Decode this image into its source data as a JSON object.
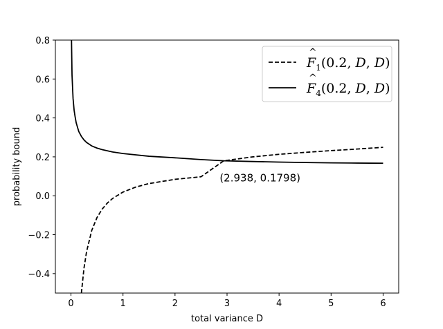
{
  "chart_data": {
    "type": "line",
    "xlabel": "total variance D",
    "ylabel": "probability bound",
    "xlim": [
      -0.3,
      6.3
    ],
    "ylim": [
      -0.5,
      0.8
    ],
    "xticks": [
      0,
      1,
      2,
      3,
      4,
      5,
      6
    ],
    "yticks": [
      -0.4,
      -0.2,
      0.0,
      0.2,
      0.4,
      0.6,
      0.8
    ],
    "ytick_labels": [
      "−0.4",
      "−0.2",
      "0.0",
      "0.2",
      "0.4",
      "0.6",
      "0.8"
    ],
    "legend_position": "upper right",
    "grid": false,
    "series": [
      {
        "name": "F̂₁(0.2, D, D)",
        "style": "dashed",
        "color": "#000000",
        "x": [
          0.2,
          0.25,
          0.3,
          0.4,
          0.5,
          0.6,
          0.7,
          0.8,
          1.0,
          1.25,
          1.5,
          2.0,
          2.5,
          2.938,
          3.5,
          4.0,
          4.5,
          5.0,
          5.5,
          6.0
        ],
        "y": [
          -0.5,
          -0.3725,
          -0.2867,
          -0.1775,
          -0.112,
          -0.0683,
          -0.0371,
          -0.0138,
          0.019,
          0.0452,
          0.0627,
          0.0845,
          0.0976,
          0.1798,
          0.2,
          0.213,
          0.223,
          0.232,
          0.24,
          0.249
        ]
      },
      {
        "name": "F̂₄(0.2, D, D)",
        "style": "solid",
        "color": "#000000",
        "x": [
          0.0,
          0.01,
          0.02,
          0.04,
          0.06,
          0.08,
          0.1,
          0.15,
          0.2,
          0.25,
          0.3,
          0.4,
          0.5,
          0.6,
          0.8,
          1.0,
          1.5,
          2.0,
          2.5,
          2.938,
          3.5,
          4.0,
          4.5,
          5.0,
          5.5,
          6.0
        ],
        "y": [
          0.8,
          0.8,
          0.62,
          0.5,
          0.44,
          0.405,
          0.375,
          0.33,
          0.305,
          0.287,
          0.274,
          0.256,
          0.245,
          0.237,
          0.225,
          0.217,
          0.203,
          0.195,
          0.186,
          0.1798,
          0.176,
          0.173,
          0.171,
          0.169,
          0.168,
          0.167
        ]
      }
    ],
    "annotations": [
      {
        "text": "(2.938, 0.1798)",
        "x": 2.938,
        "y": 0.1798
      }
    ]
  },
  "legend": {
    "entries": [
      {
        "base": "F",
        "sub": "1",
        "args": "(0.2, ",
        "var1": "D",
        "comma": ", ",
        "var2": "D",
        "close": ")"
      },
      {
        "base": "F",
        "sub": "4",
        "args": "(0.2, ",
        "var1": "D",
        "comma": ", ",
        "var2": "D",
        "close": ")"
      }
    ]
  }
}
